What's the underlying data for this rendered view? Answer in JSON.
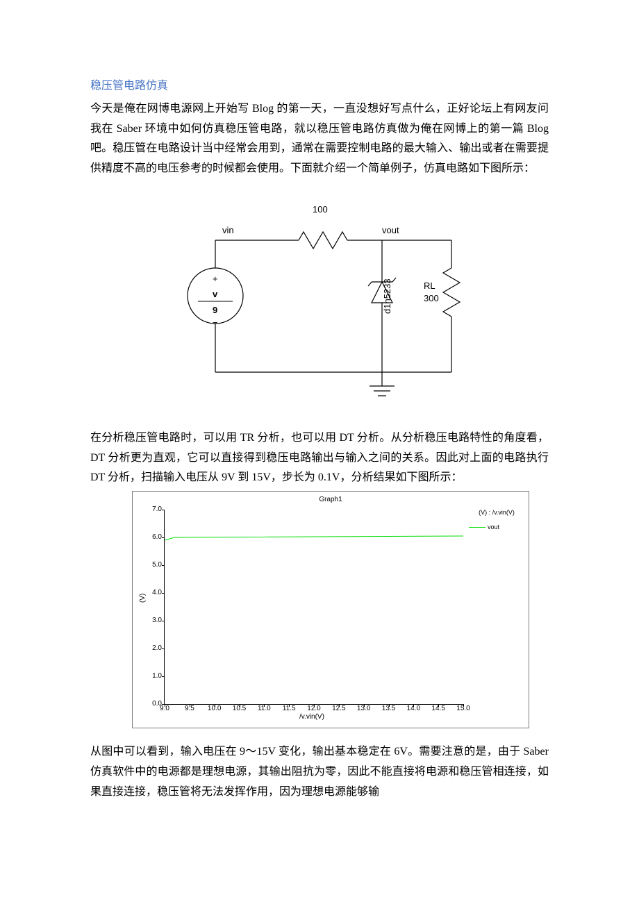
{
  "title": "稳压管电路仿真",
  "para1_parts": [
    {
      "t": "今天是俺在网博电源网上开始写 ",
      "latin": false
    },
    {
      "t": "Blog ",
      "latin": true
    },
    {
      "t": "的第一天，一直没想好写点什么，正好论坛上有网友问我在 ",
      "latin": false
    },
    {
      "t": "Saber ",
      "latin": true
    },
    {
      "t": "环境中如何仿真稳压管电路，就以稳压管电路仿真做为俺在网博上的第一篇 ",
      "latin": false
    },
    {
      "t": "Blog ",
      "latin": true
    },
    {
      "t": "吧。稳压管在电路设计当中经常会用到，通常在需要控制电路的最大输入、输出或者在需要提供精度不高的电压参考的时候都会使用。下面就介绍一个简单例子，仿真电路如下图所示：",
      "latin": false
    }
  ],
  "circuit": {
    "r_series_label": "100",
    "vin_label": "vin",
    "vout_label": "vout",
    "src_plus": "+",
    "src_v": "v",
    "src_val": "9",
    "src_minus": "−",
    "zener_label": "d1n5233",
    "rl_label": "RL",
    "rl_val": "300",
    "colors": {
      "stroke": "#000000",
      "fill": "#ffffff",
      "text": "#000000"
    }
  },
  "para2_parts": [
    {
      "t": "在分析稳压管电路时，可以用 ",
      "latin": false
    },
    {
      "t": "TR ",
      "latin": true
    },
    {
      "t": "分析，也可以用 ",
      "latin": false
    },
    {
      "t": "DT ",
      "latin": true
    },
    {
      "t": "分析。从分析稳压电路特性的角度看，",
      "latin": false
    },
    {
      "t": "DT ",
      "latin": true
    },
    {
      "t": "分析更为直观，它可以直接得到稳压电路输出与输入之间的关系。因此对上面的电路执行 ",
      "latin": false
    },
    {
      "t": "DT ",
      "latin": true
    },
    {
      "t": "分析，扫描输入电压从 ",
      "latin": false
    },
    {
      "t": "9V ",
      "latin": true
    },
    {
      "t": "到 ",
      "latin": false
    },
    {
      "t": "15V",
      "latin": true
    },
    {
      "t": "，步长为 ",
      "latin": false
    },
    {
      "t": "0.1V",
      "latin": true
    },
    {
      "t": "，分析结果如下图所示：",
      "latin": false
    }
  ],
  "chart": {
    "title": "Graph1",
    "legend_header": "(V) : /v.vin(V)",
    "legend_item": "vout",
    "y_label": "(V)",
    "x_label": "/v.vin(V)",
    "yticks": [
      0.0,
      1.0,
      2.0,
      3.0,
      4.0,
      5.0,
      6.0,
      7.0
    ],
    "ylim": [
      0.0,
      7.0
    ],
    "xticks": [
      9.0,
      9.5,
      10.0,
      10.5,
      11.0,
      11.5,
      12.0,
      12.5,
      13.0,
      13.5,
      14.0,
      14.5,
      15.0
    ],
    "xlim": [
      9.0,
      15.0
    ],
    "series": {
      "x": [
        9.0,
        9.2,
        15.0
      ],
      "y": [
        5.9,
        6.0,
        6.05
      ],
      "color": "#00dd00"
    },
    "background_color": "#ffffff",
    "axis_color": "#000000"
  },
  "para3_parts": [
    {
      "t": "从图中可以看到，输入电压在 ",
      "latin": false
    },
    {
      "t": "9～15V ",
      "latin": true
    },
    {
      "t": "变化，输出基本稳定在 ",
      "latin": false
    },
    {
      "t": "6V",
      "latin": true
    },
    {
      "t": "。需要注意的是，由于 ",
      "latin": false
    },
    {
      "t": "Saber ",
      "latin": true
    },
    {
      "t": "仿真软件中的电源都是理想电源，其输出阻抗为零，因此不能直接将电源和稳压管相连接，如果直接连接，稳压管将无法发挥作用，因为理想电源能够输",
      "latin": false
    }
  ]
}
